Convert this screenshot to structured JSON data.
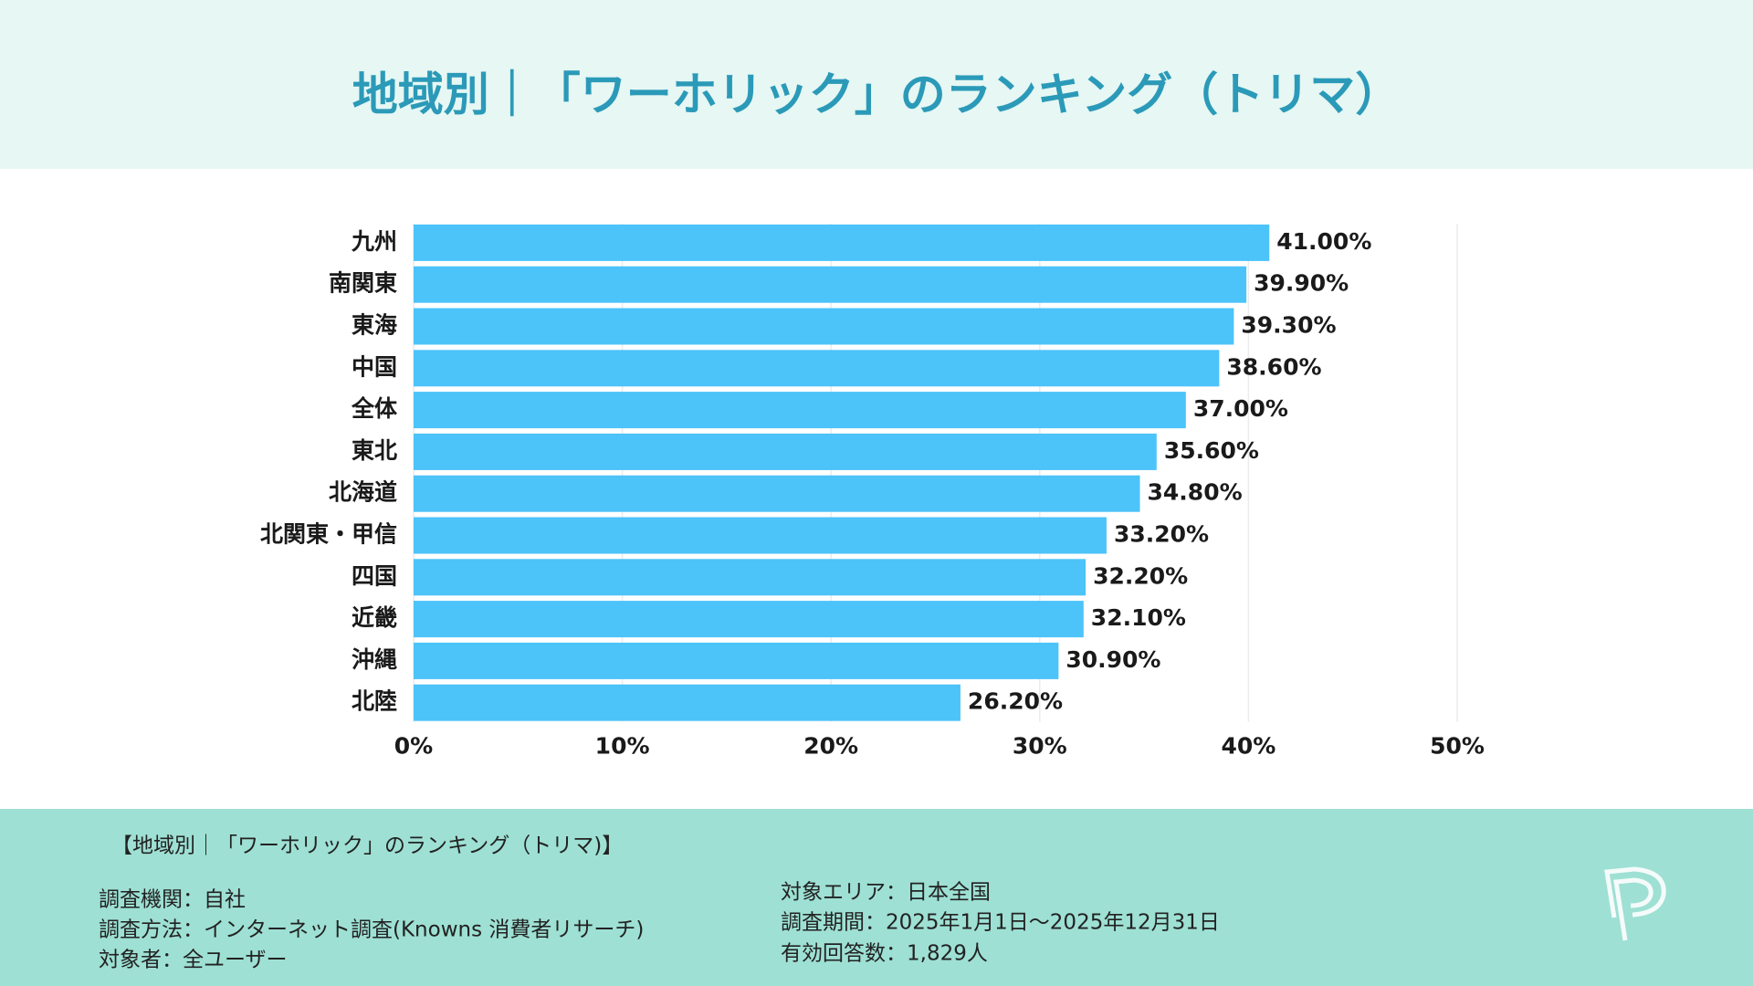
{
  "chart_data": {
    "type": "barh",
    "title": "地域別｜「ワーホリック」のランキング（トリマ）",
    "categories": [
      "九州",
      "南関東",
      "東海",
      "中国",
      "全体",
      "東北",
      "北海道",
      "北関東・甲信",
      "四国",
      "近畿",
      "沖縄",
      "北陸"
    ],
    "values": [
      41.0,
      39.9,
      39.3,
      38.6,
      37.0,
      35.6,
      34.8,
      33.2,
      32.2,
      32.1,
      30.9,
      26.2
    ],
    "value_labels": [
      "41.00%",
      "39.90%",
      "39.30%",
      "38.60%",
      "37.00%",
      "35.60%",
      "34.80%",
      "33.20%",
      "32.20%",
      "32.10%",
      "30.90%",
      "26.20%"
    ],
    "color": "#4cc3f9",
    "xlim": [
      0,
      50
    ],
    "xticks": [
      {
        "value": 0,
        "label": "0%"
      },
      {
        "value": 10,
        "label": "10%"
      },
      {
        "value": 20,
        "label": "20%"
      },
      {
        "value": 30,
        "label": "30%"
      },
      {
        "value": 40,
        "label": "40%"
      },
      {
        "value": 50,
        "label": "50%"
      }
    ],
    "grid": true
  },
  "footer": {
    "heading": "【地域別｜「ワーホリック」のランキング（トリマ)】",
    "left": [
      "調査機関：自社",
      "調査方法：インターネット調査(Knowns 消費者リサーチ)",
      "対象者：全ユーザー"
    ],
    "right": [
      "対象エリア：日本全国",
      "調査期間：2025年1月1日〜2025年12月31日",
      "有効回答数：1,829人"
    ]
  }
}
